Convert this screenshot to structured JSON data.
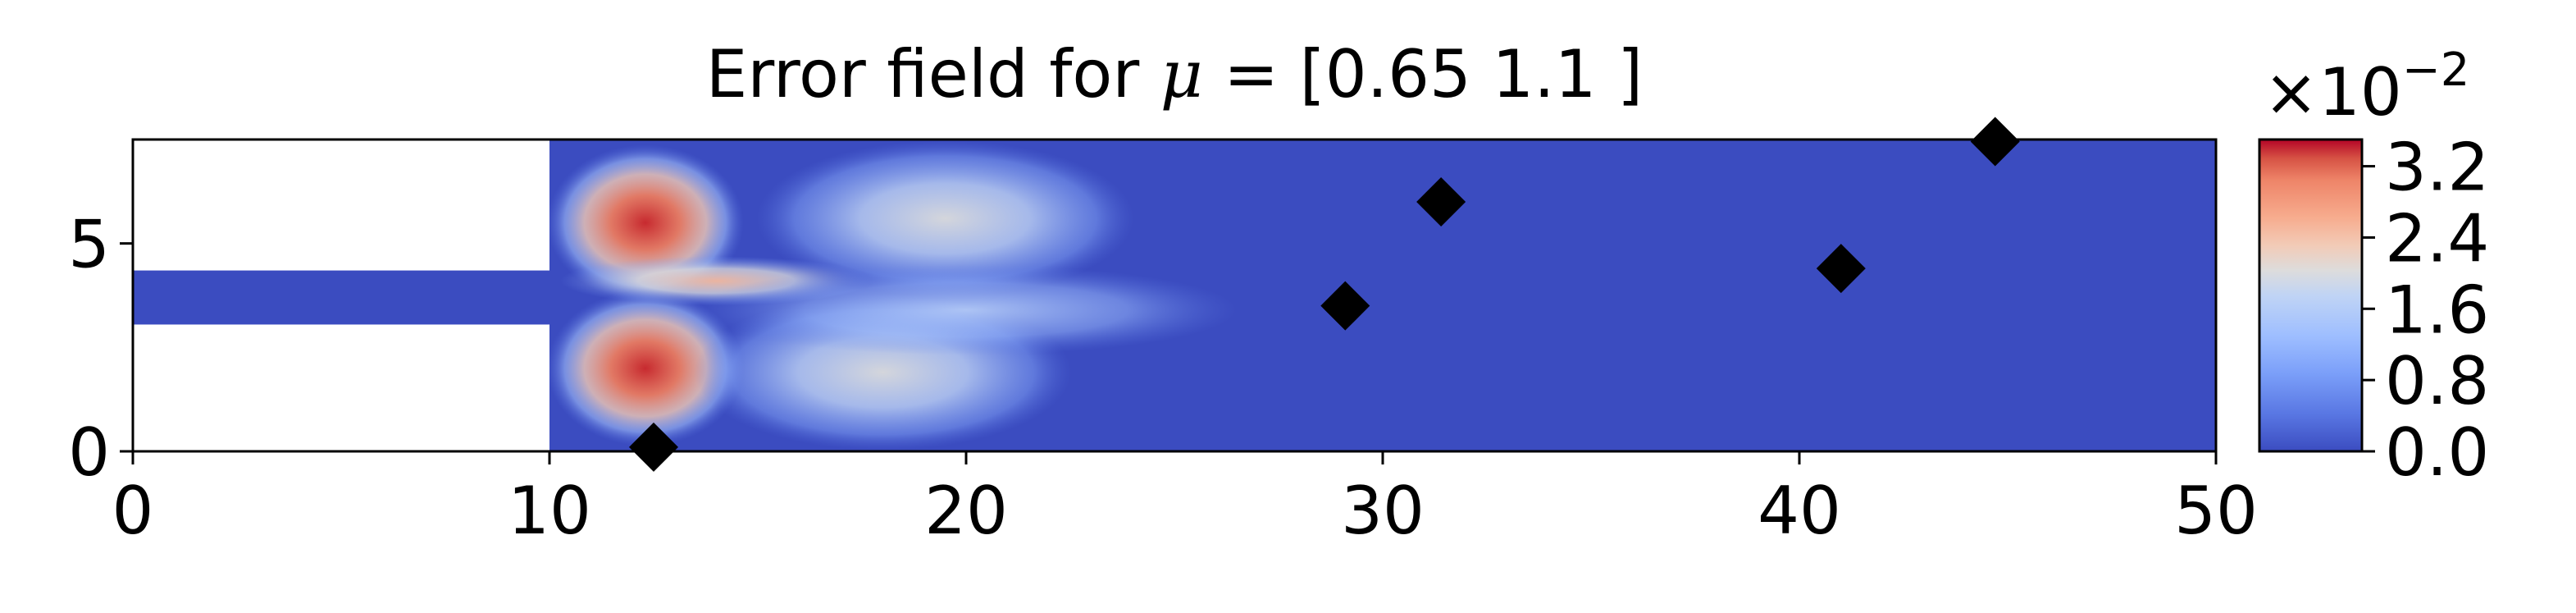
{
  "chart_data": {
    "type": "heatmap",
    "title": "Error field for μ = [0.65 1.1 ]",
    "title_prefix": "Error field for ",
    "title_mu": "μ",
    "title_suffix": " = [0.65 1.1 ]",
    "xlim": [
      0,
      50
    ],
    "ylim": [
      0,
      7.5
    ],
    "x_ticks": [
      0,
      10,
      20,
      30,
      40,
      50
    ],
    "y_ticks": [
      0,
      5
    ],
    "x_tick_labels": [
      "0",
      "10",
      "20",
      "30",
      "40",
      "50"
    ],
    "y_tick_labels": [
      "0",
      "5"
    ],
    "colormap": "coolwarm",
    "colorbar": {
      "range": [
        0,
        3.5
      ],
      "ticks": [
        0.0,
        0.8,
        1.6,
        2.4,
        3.2
      ],
      "tick_labels": [
        "0.0",
        "0.8",
        "1.6",
        "2.4",
        "3.2"
      ],
      "exponent_base": "×10",
      "exponent_power": "−2"
    },
    "blank_regions": [
      {
        "x": [
          0,
          10
        ],
        "y": [
          4.35,
          7.5
        ]
      },
      {
        "x": [
          0,
          10
        ],
        "y": [
          0,
          3.05
        ]
      }
    ],
    "sensor_points": [
      {
        "x": 12.5,
        "y": 0.1
      },
      {
        "x": 29.1,
        "y": 3.5
      },
      {
        "x": 31.4,
        "y": 6.0
      },
      {
        "x": 41.0,
        "y": 4.4
      },
      {
        "x": 44.7,
        "y": 7.45
      }
    ],
    "hotspots": [
      {
        "x": 12.3,
        "y": 5.5,
        "value": 3.3
      },
      {
        "x": 12.3,
        "y": 2.0,
        "value": 3.2
      },
      {
        "x": 19.5,
        "y": 5.6,
        "value": 1.5
      },
      {
        "x": 18.0,
        "y": 1.9,
        "value": 1.6
      },
      {
        "x": 14.0,
        "y": 4.1,
        "value": 2.3
      },
      {
        "x": 20.0,
        "y": 3.4,
        "value": 1.0
      }
    ],
    "colors": {
      "low": "#3b4cc0",
      "mid": "#dddddd",
      "high": "#b40426"
    }
  }
}
